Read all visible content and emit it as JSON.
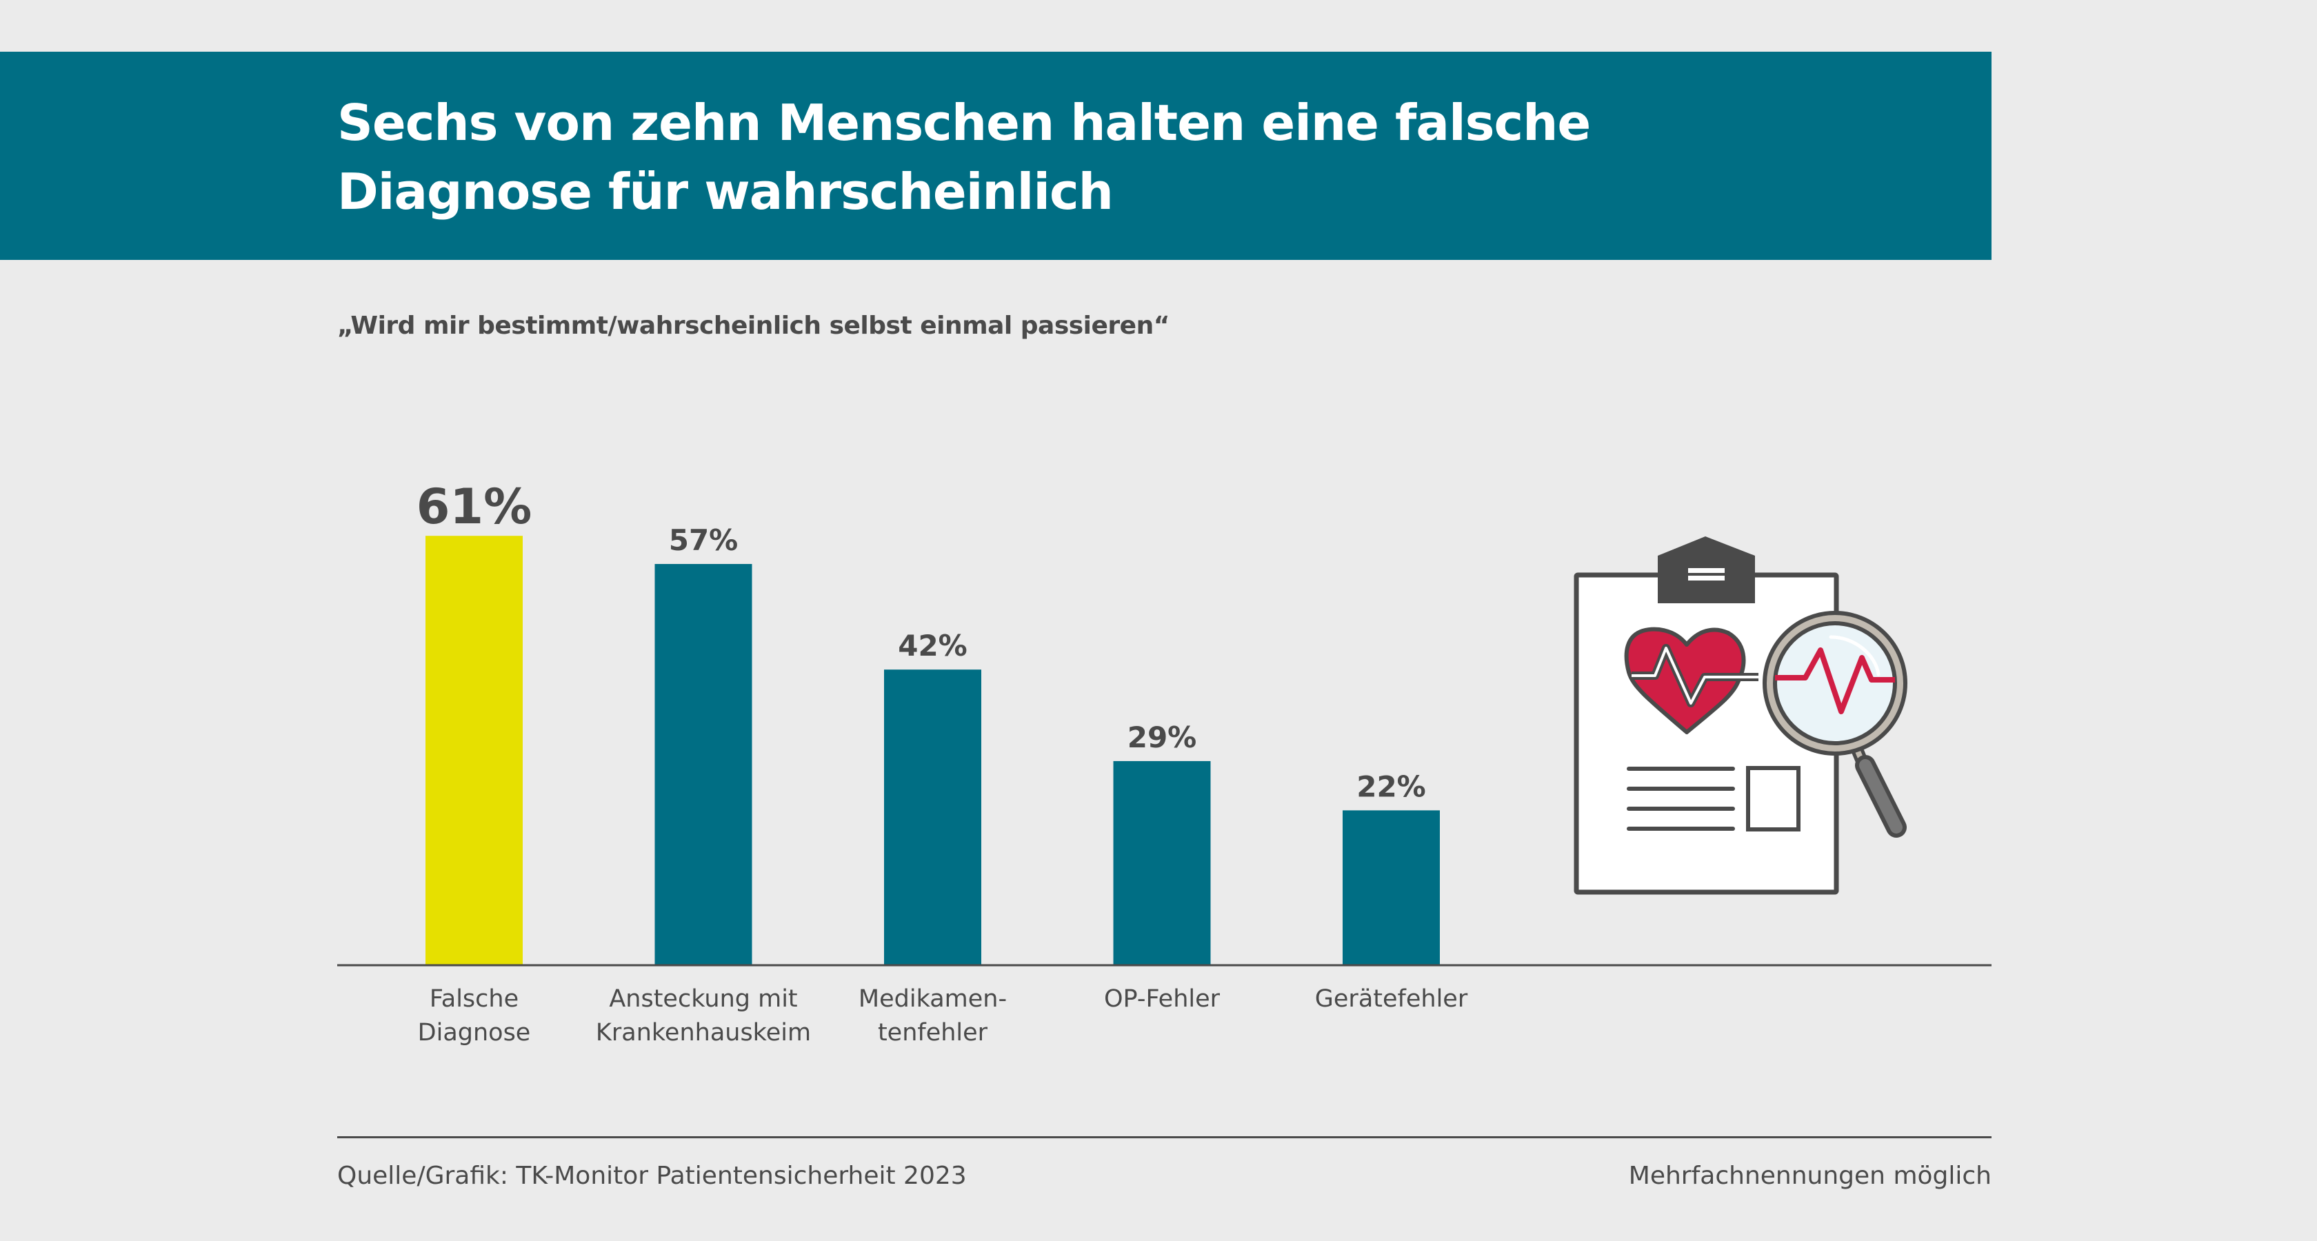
{
  "header": {
    "title_line1": "Sechs von zehn Menschen halten eine falsche",
    "title_line2": "Diagnose für wahrscheinlich",
    "subtitle": "„Wird mir bestimmt/wahrscheinlich selbst einmal passieren“"
  },
  "colors": {
    "banner": "#006e84",
    "highlight_bar": "#e6e000",
    "bar": "#006e84",
    "text": "#4a4a4a",
    "background": "#ebebeb",
    "heart": "#d01e44"
  },
  "chart_data": {
    "type": "bar",
    "title": "Sechs von zehn Menschen halten eine falsche Diagnose für wahrscheinlich",
    "subtitle": "„Wird mir bestimmt/wahrscheinlich selbst einmal passieren“",
    "categories": [
      [
        "Falsche",
        "Diagnose"
      ],
      [
        "Ansteckung mit",
        "Krankenhauskeim"
      ],
      [
        "Medikamen-",
        "tenfehler"
      ],
      [
        "OP-Fehler"
      ],
      [
        "Gerätefehler"
      ]
    ],
    "values": [
      61,
      57,
      42,
      29,
      22
    ],
    "data_labels": [
      "61%",
      "57%",
      "42%",
      "29%",
      "22%"
    ],
    "highlight_index": 0,
    "unit": "%",
    "xlabel": "",
    "ylabel": "",
    "ylim": [
      0,
      100
    ],
    "grid": false,
    "legend": "none"
  },
  "illustration": {
    "name": "clipboard-heart-magnifier",
    "description": "Clipboard with heart and heartbeat line under a magnifying glass"
  },
  "footer": {
    "source": "Quelle/Grafik: TK-Monitor Patientensicherheit 2023",
    "note": "Mehrfachnennungen möglich"
  }
}
